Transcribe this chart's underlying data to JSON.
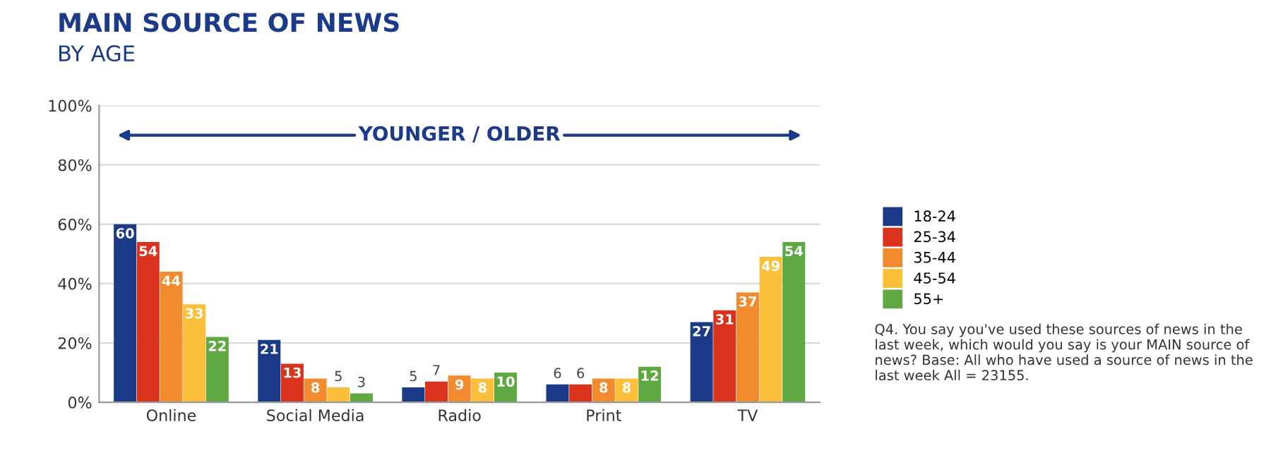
{
  "chart_data": {
    "type": "bar",
    "title": "MAIN SOURCE OF NEWS",
    "subtitle": "BY AGE",
    "categories": [
      "Online",
      "Social Media",
      "Radio",
      "Print",
      "TV"
    ],
    "series": [
      {
        "name": "18-24",
        "color": "#1b3a87",
        "values": [
          60,
          21,
          5,
          6,
          27
        ]
      },
      {
        "name": "25-34",
        "color": "#d9331e",
        "values": [
          54,
          13,
          7,
          6,
          31
        ]
      },
      {
        "name": "35-44",
        "color": "#f28a2e",
        "values": [
          44,
          8,
          9,
          8,
          37
        ]
      },
      {
        "name": "45-54",
        "color": "#fbbf3a",
        "values": [
          33,
          5,
          8,
          8,
          49
        ]
      },
      {
        "name": "55+",
        "color": "#5fa844",
        "values": [
          22,
          3,
          10,
          12,
          54
        ]
      }
    ],
    "ylim": [
      0,
      100
    ],
    "yticks": [
      {
        "value": 0,
        "label": "0%"
      },
      {
        "value": 20,
        "label": "20%"
      },
      {
        "value": 40,
        "label": "40%"
      },
      {
        "value": 60,
        "label": "60%"
      },
      {
        "value": 80,
        "label": "80%"
      },
      {
        "value": 100,
        "label": "100%"
      }
    ],
    "grid": "y",
    "legend": "right",
    "data_labels": true,
    "annotations": [
      "YOUNGER / OLDER",
      "Q4. You say you've used these sources of news in the last week, which would you say is your MAIN source of news? Base: All who have used a source of news in the last week All = 23155."
    ]
  }
}
